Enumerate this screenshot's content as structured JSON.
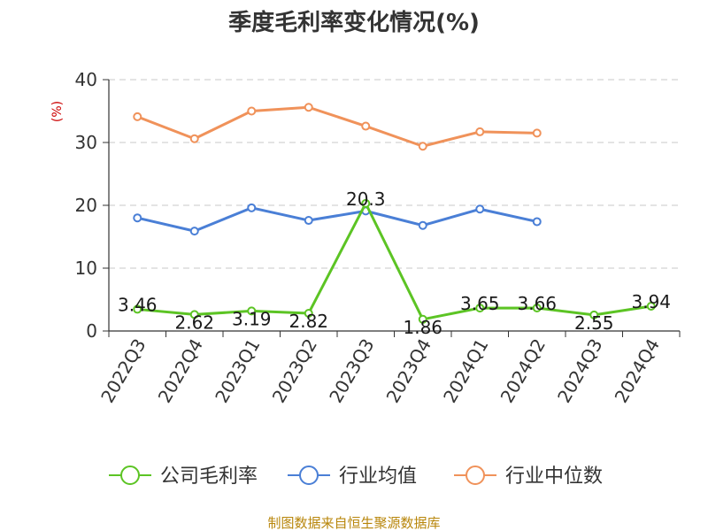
{
  "title": "季度毛利率变化情况(%)",
  "source_text": "制图数据来自恒生聚源数据库",
  "chart_data": {
    "type": "line",
    "ylabel": "(%)",
    "ylim": [
      0,
      40
    ],
    "yticks": [
      0,
      10,
      20,
      30,
      40
    ],
    "grid": true,
    "legend_position": "bottom",
    "categories": [
      "2022Q3",
      "2022Q4",
      "2023Q1",
      "2023Q2",
      "2023Q3",
      "2023Q4",
      "2024Q1",
      "2024Q2",
      "2024Q3",
      "2024Q4"
    ],
    "series": [
      {
        "name": "公司毛利率",
        "color": "#5cc424",
        "values": [
          3.46,
          2.62,
          3.19,
          2.82,
          20.3,
          1.86,
          3.65,
          3.66,
          2.55,
          3.94
        ],
        "labels": [
          "3.46",
          "2.62",
          "3.19",
          "2.82",
          "20.3",
          "1.86",
          "3.65",
          "3.66",
          "2.55",
          "3.94"
        ]
      },
      {
        "name": "行业均值",
        "color": "#4a7fd6",
        "values": [
          18.0,
          15.9,
          19.6,
          17.6,
          19.1,
          16.8,
          19.4,
          17.4,
          null,
          null
        ]
      },
      {
        "name": "行业中位数",
        "color": "#f0925a",
        "values": [
          34.1,
          30.6,
          35.0,
          35.6,
          32.6,
          29.4,
          31.7,
          31.5,
          null,
          null
        ]
      }
    ]
  }
}
